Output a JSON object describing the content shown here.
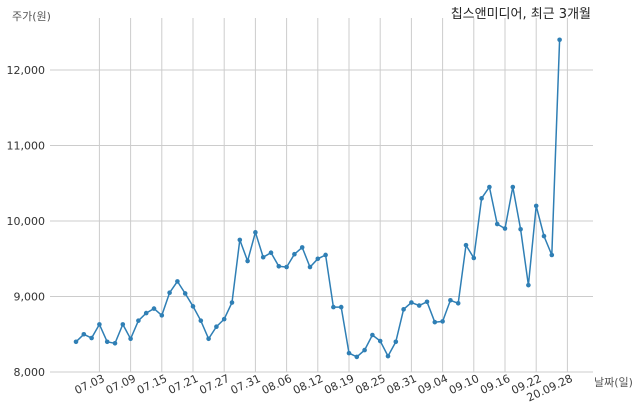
{
  "chart_data": {
    "type": "line",
    "title": "칩스앤미디어, 최근 3개월",
    "xlabel": "날짜(일)",
    "ylabel": "주가(원)",
    "ylim": [
      8000,
      12600
    ],
    "yticks": [
      8000,
      9000,
      10000,
      11000,
      12000
    ],
    "ytick_labels": [
      "8,000",
      "9,000",
      "10,000",
      "11,000",
      "12,000"
    ],
    "xtick_labels": [
      "07.03",
      "07.09",
      "07.15",
      "07.21",
      "07.27",
      "07.31",
      "08.06",
      "08.12",
      "08.19",
      "08.25",
      "08.31",
      "09.04",
      "09.10",
      "09.16",
      "09.22",
      "20.09.28"
    ],
    "grid": true,
    "line_color": "#2f7fb5",
    "series": [
      {
        "values": [
          8400,
          8500,
          8450,
          8630,
          8400,
          8380,
          8630,
          8440,
          8680,
          8780,
          8840,
          8750,
          9050,
          9200,
          9040,
          8870,
          8680,
          8440,
          8600,
          8700,
          8920,
          9750,
          9470,
          9850,
          9520,
          9580,
          9400,
          9390,
          9560,
          9650,
          9390,
          9500,
          9550,
          8860,
          8860,
          8250,
          8200,
          8290,
          8490,
          8410,
          8210,
          8400,
          8830,
          8920,
          8880,
          8930,
          8660,
          8670,
          8950,
          8910,
          9680,
          9510,
          10300,
          10450,
          9960,
          9900,
          10450,
          9890,
          9150,
          10200,
          9800,
          9550,
          12400
        ]
      }
    ]
  }
}
